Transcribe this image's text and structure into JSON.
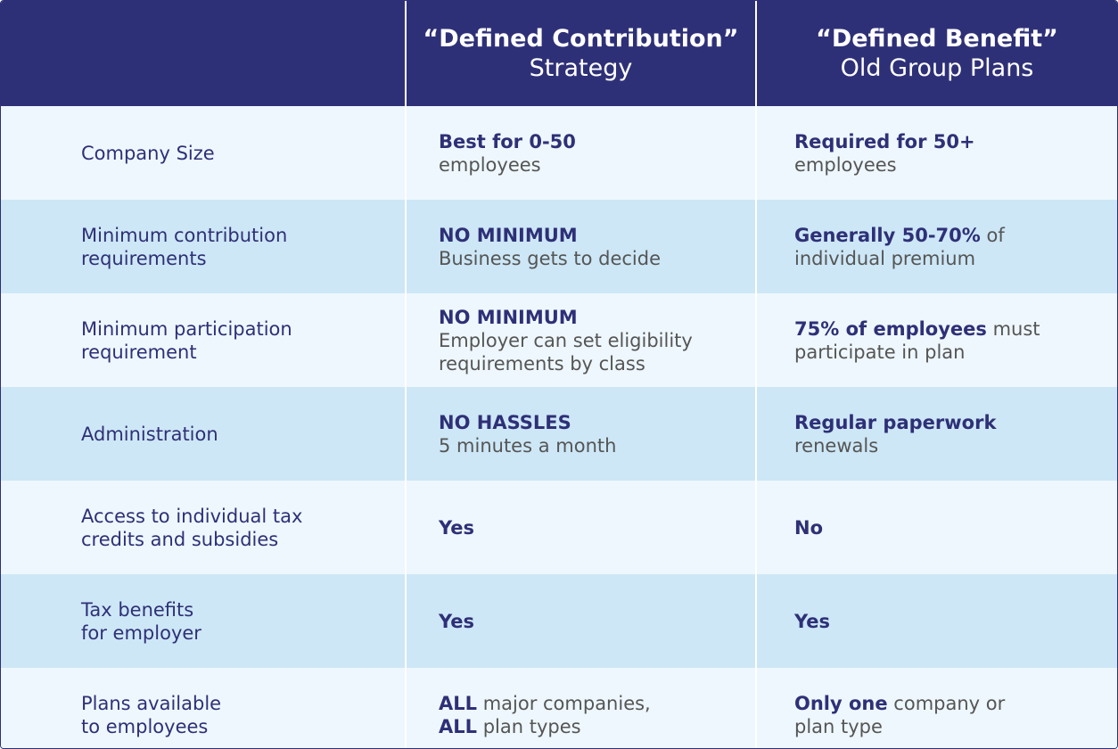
{
  "table": {
    "header": [
      {
        "title": "“Defined Contribution”",
        "subtitle": "Strategy"
      },
      {
        "title": "“Defined Benefit”",
        "subtitle": "Old Group Plans"
      }
    ],
    "rows": [
      {
        "label": [
          "Company Size"
        ],
        "cells": [
          [
            [
              {
                "text": "Best for 0-50",
                "bold": true
              }
            ],
            [
              {
                "text": "employees",
                "bold": false
              }
            ]
          ],
          [
            [
              {
                "text": "Required for 50+",
                "bold": true
              }
            ],
            [
              {
                "text": "employees",
                "bold": false
              }
            ]
          ]
        ]
      },
      {
        "label": [
          "Minimum contribution",
          "requirements"
        ],
        "cells": [
          [
            [
              {
                "text": "NO MINIMUM",
                "bold": true
              }
            ],
            [
              {
                "text": "Business gets to decide",
                "bold": false
              }
            ]
          ],
          [
            [
              {
                "text": "Generally 50-70%",
                "bold": true
              },
              {
                "text": " of",
                "bold": false
              }
            ],
            [
              {
                "text": "individual premium",
                "bold": false
              }
            ]
          ]
        ]
      },
      {
        "label": [
          "Minimum participation",
          "requirement"
        ],
        "cells": [
          [
            [
              {
                "text": "NO MINIMUM",
                "bold": true
              }
            ],
            [
              {
                "text": "Employer can set eligibility",
                "bold": false
              }
            ],
            [
              {
                "text": "requirements by class",
                "bold": false
              }
            ]
          ],
          [
            [
              {
                "text": "75% of employees",
                "bold": true
              },
              {
                "text": " must",
                "bold": false
              }
            ],
            [
              {
                "text": "participate in plan",
                "bold": false
              }
            ]
          ]
        ]
      },
      {
        "label": [
          "Administration"
        ],
        "cells": [
          [
            [
              {
                "text": "NO HASSLES",
                "bold": true
              }
            ],
            [
              {
                "text": "5 minutes a month",
                "bold": false
              }
            ]
          ],
          [
            [
              {
                "text": "Regular paperwork",
                "bold": true
              }
            ],
            [
              {
                "text": "renewals",
                "bold": false
              }
            ]
          ]
        ]
      },
      {
        "label": [
          "Access to individual tax",
          "credits and subsidies"
        ],
        "cells": [
          [
            [
              {
                "text": "Yes",
                "bold": true
              }
            ]
          ],
          [
            [
              {
                "text": "No",
                "bold": true
              }
            ]
          ]
        ]
      },
      {
        "label": [
          "Tax benefits",
          "for employer"
        ],
        "cells": [
          [
            [
              {
                "text": "Yes",
                "bold": true
              }
            ]
          ],
          [
            [
              {
                "text": "Yes",
                "bold": true
              }
            ]
          ]
        ]
      },
      {
        "label": [
          "Plans available",
          "to employees"
        ],
        "cells": [
          [
            [
              {
                "text": "ALL",
                "bold": true
              },
              {
                "text": " major companies,",
                "bold": false
              }
            ],
            [
              {
                "text": "ALL",
                "bold": true
              },
              {
                "text": " plan types",
                "bold": false
              }
            ]
          ],
          [
            [
              {
                "text": "Only one",
                "bold": true
              },
              {
                "text": " company or",
                "bold": false
              }
            ],
            [
              {
                "text": "plan type",
                "bold": false
              }
            ]
          ]
        ]
      }
    ]
  }
}
